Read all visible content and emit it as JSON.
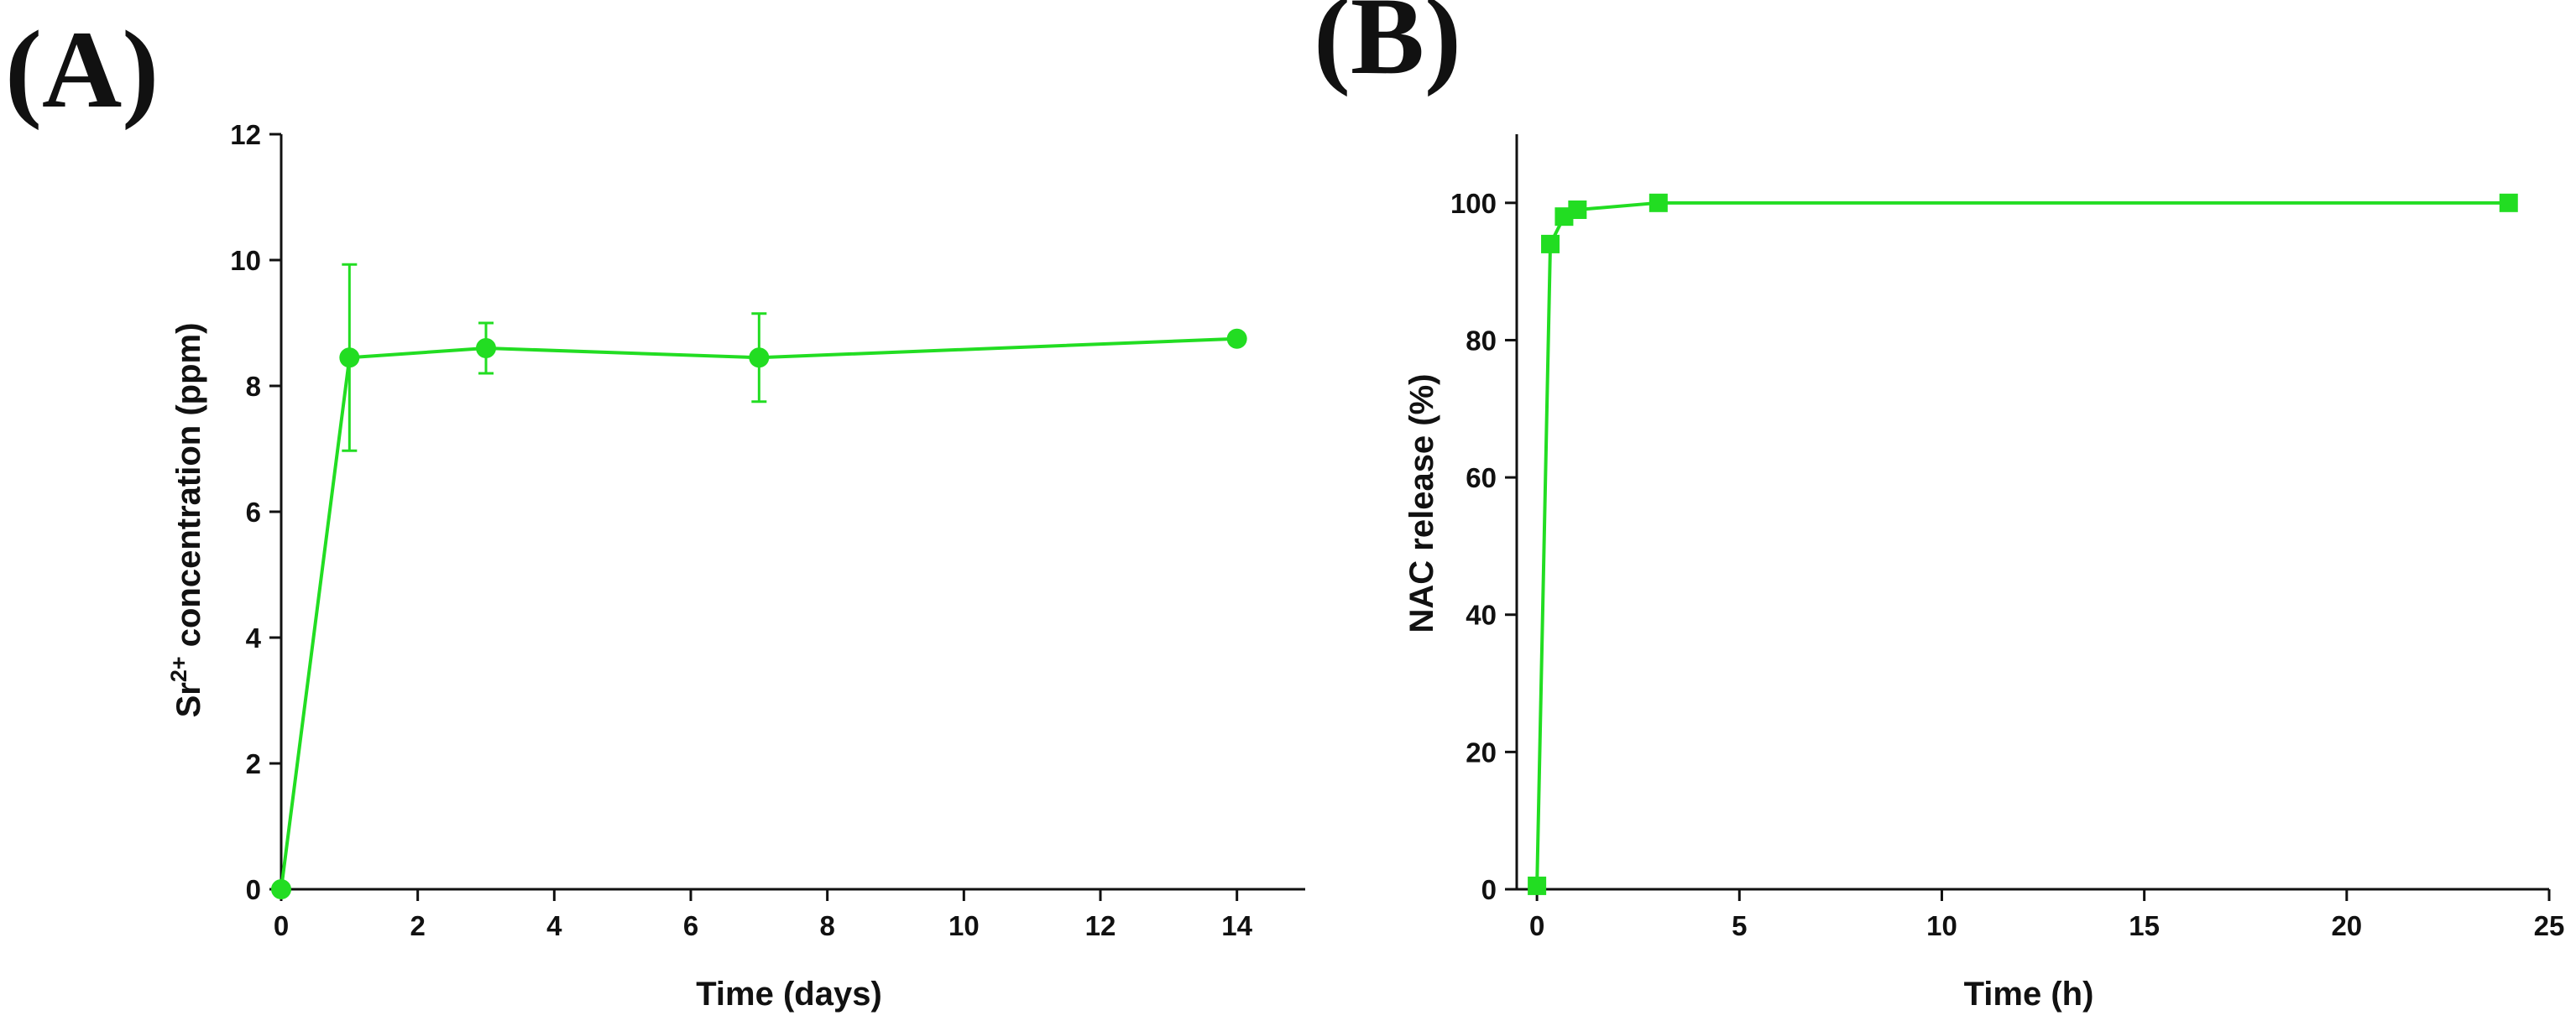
{
  "panel_labels": {
    "a": "(A)",
    "b": "(B)"
  },
  "chart_data": [
    {
      "id": "A",
      "type": "line",
      "panel_label": "(A)",
      "title": "",
      "xlabel": "Time (days)",
      "ylabel_main": "Sr",
      "ylabel_sup": "2+",
      "ylabel_rest": " concentration (ppm)",
      "xlim": [
        0,
        15
      ],
      "ylim": [
        0,
        12
      ],
      "xticks": [
        0,
        2,
        4,
        6,
        8,
        10,
        12,
        14
      ],
      "yticks": [
        0,
        2,
        4,
        6,
        8,
        10,
        12
      ],
      "marker": "circle",
      "color": "#22dd22",
      "series": [
        {
          "name": "Sr2+ concentration",
          "x": [
            0,
            1,
            3,
            7,
            14
          ],
          "y": [
            0,
            8.45,
            8.6,
            8.45,
            8.75
          ],
          "yerr": [
            0,
            1.48,
            0.4,
            0.7,
            0
          ]
        }
      ]
    },
    {
      "id": "B",
      "type": "line",
      "panel_label": "(B)",
      "title": "",
      "xlabel": "Time (h)",
      "ylabel": "NAC release (%)",
      "xlim": [
        -0.5,
        25
      ],
      "ylim": [
        0,
        110
      ],
      "xticks": [
        0,
        5,
        10,
        15,
        20,
        25
      ],
      "yticks": [
        0,
        20,
        40,
        60,
        80,
        100
      ],
      "marker": "square",
      "color": "#22dd22",
      "series": [
        {
          "name": "NAC release",
          "x": [
            0,
            0.33,
            0.67,
            1,
            3,
            24
          ],
          "y": [
            0.5,
            94,
            98,
            99,
            100,
            100
          ]
        }
      ]
    }
  ]
}
